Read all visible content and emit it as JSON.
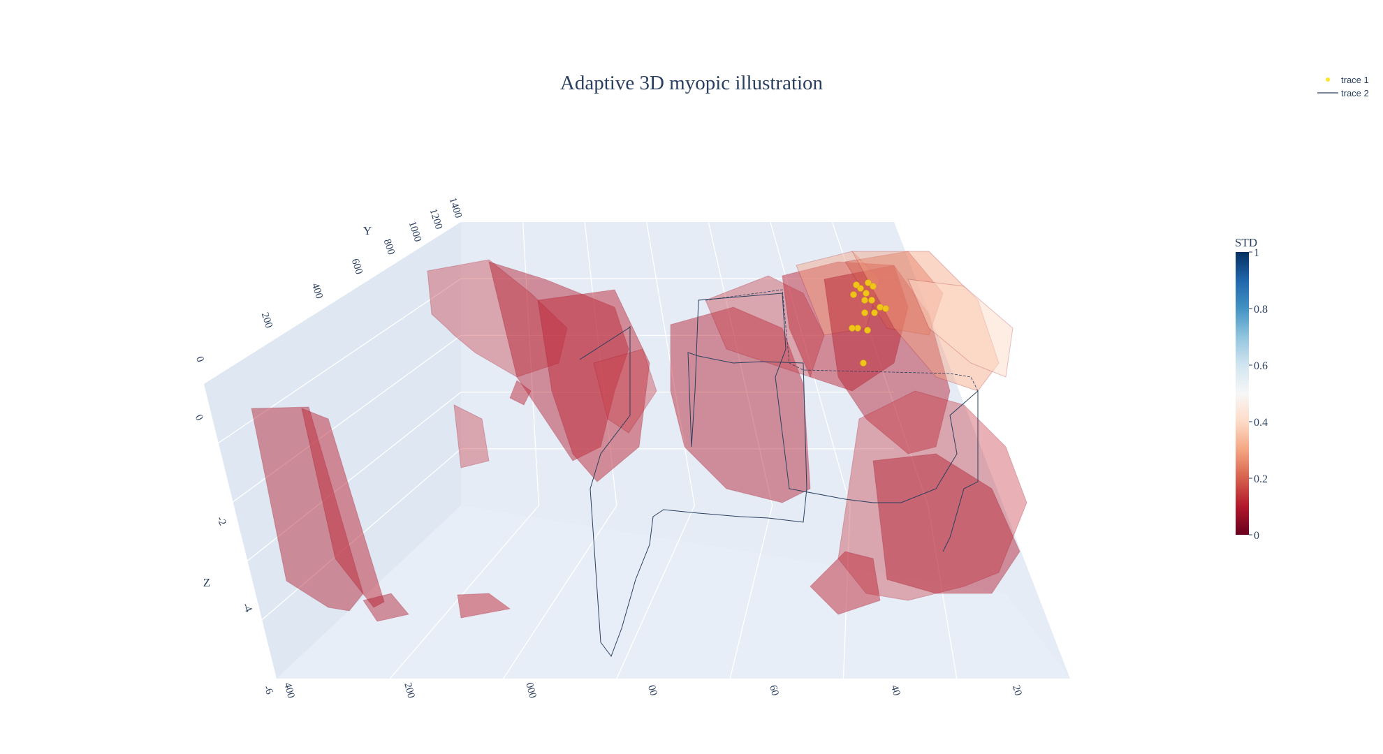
{
  "chart_data": {
    "type": "3d-surface-scatter-line",
    "title": "Adaptive 3D myopic illustration",
    "legend": {
      "placement": "top-right",
      "entries": [
        {
          "name": "trace 1",
          "kind": "markers",
          "color": "#ffe52a"
        },
        {
          "name": "trace 2",
          "kind": "lines",
          "color": "#2a3f5f"
        }
      ]
    },
    "scene": {
      "background": "#e5ecf6",
      "grid": true,
      "axes": {
        "x": {
          "title": "",
          "ticks": [
            "400",
            "200",
            "000",
            "00",
            "60",
            "40",
            "20"
          ]
        },
        "y": {
          "title": "Y",
          "ticks": [
            "0",
            "200",
            "400",
            "600",
            "800",
            "1000",
            "1200",
            "1400"
          ]
        },
        "z": {
          "title": "Z",
          "ticks": [
            "0",
            "-2",
            "-4",
            "-6"
          ],
          "range": [
            -6,
            0
          ]
        }
      }
    },
    "colorbar": {
      "title": "STD",
      "range": [
        0,
        1
      ],
      "ticks": [
        "0",
        "0.2",
        "0.4",
        "0.6",
        "0.8",
        "1"
      ],
      "colorscale": [
        "#67001f",
        "#b2182b",
        "#d6604d",
        "#f4a582",
        "#fddbc7",
        "#f7f7f7",
        "#d1e5f0",
        "#92c5de",
        "#4393c3",
        "#2166ac",
        "#053061"
      ]
    },
    "series": [
      {
        "name": "trace 1",
        "type": "scatter3d",
        "mode": "markers",
        "color": "#ffe52a"
      },
      {
        "name": "trace 2",
        "type": "scatter3d",
        "mode": "lines",
        "color": "#2a3f5f"
      },
      {
        "name": "surface",
        "type": "surface",
        "colorscale": "RdBu",
        "opacity": 0.5,
        "std_range": [
          0,
          0.5
        ]
      }
    ]
  }
}
